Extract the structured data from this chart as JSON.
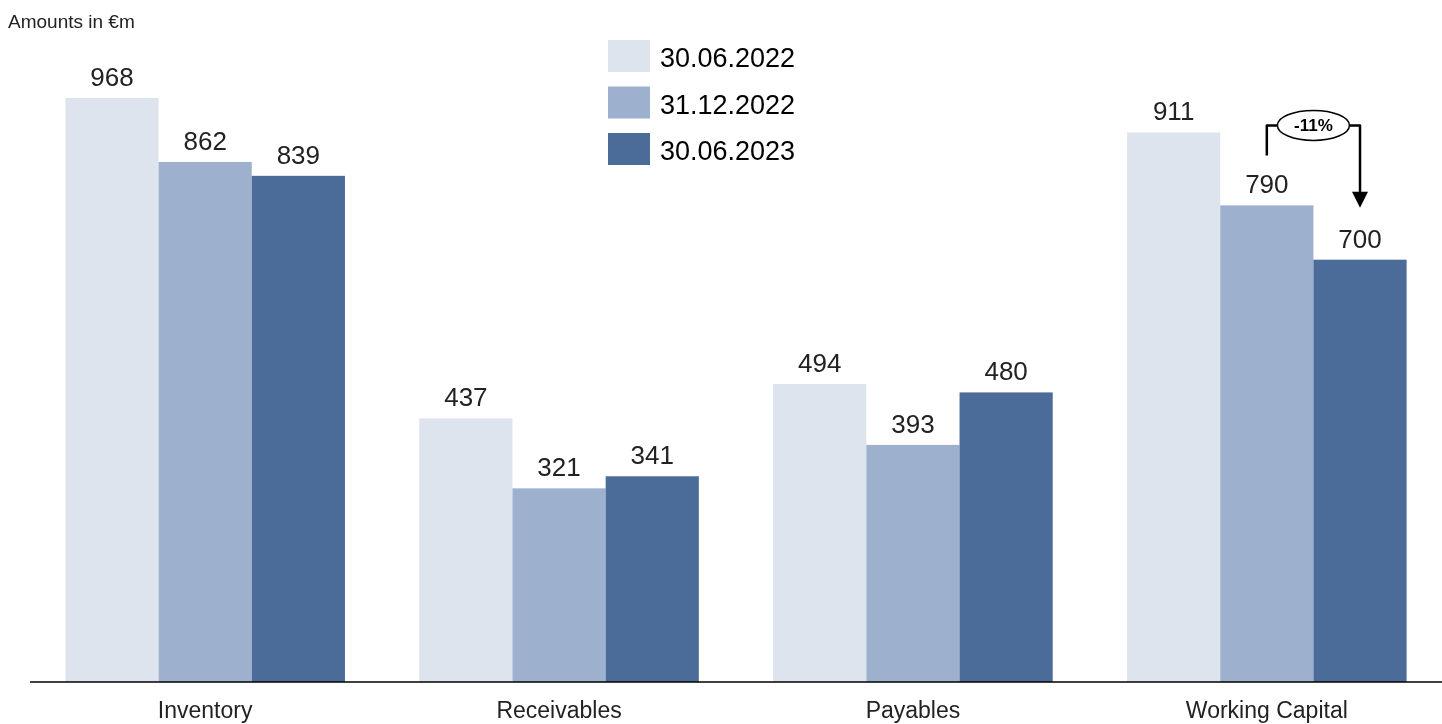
{
  "chart_data": {
    "type": "bar",
    "ylabel": "Amounts in €m",
    "categories": [
      "Inventory",
      "Receivables",
      "Payables",
      "Working Capital"
    ],
    "series": [
      {
        "name": "30.06.2022",
        "color": "#dee4ee",
        "values": [
          968,
          437,
          494,
          911
        ]
      },
      {
        "name": "31.12.2022",
        "color": "#9db0cd",
        "values": [
          862,
          321,
          393,
          790
        ]
      },
      {
        "name": "30.06.2023",
        "color": "#4b6b99",
        "values": [
          839,
          341,
          480,
          700
        ]
      }
    ],
    "data_labels": true,
    "legend": "top",
    "annotations": [
      "-11%"
    ]
  }
}
